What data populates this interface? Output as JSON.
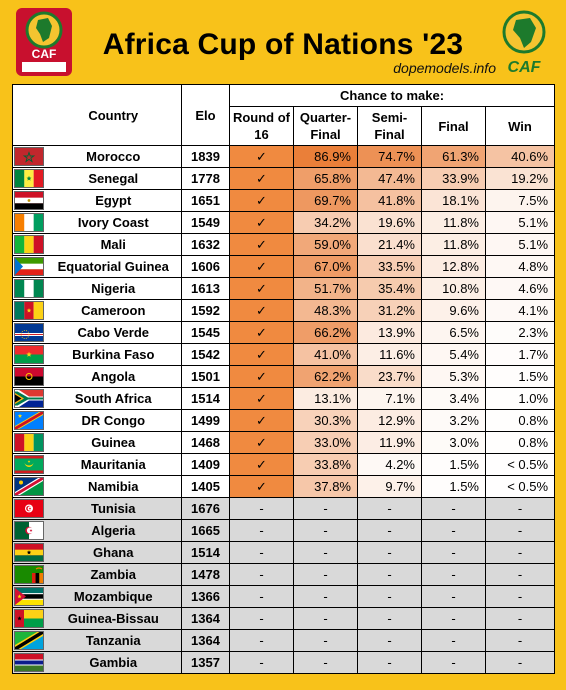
{
  "header": {
    "title": "Africa Cup of Nations '23",
    "credit": "dopemodels.info",
    "logo_left_text": "CAF",
    "logo_right_text": "CAF"
  },
  "table": {
    "group_header": "Chance to make:",
    "columns": {
      "country": "Country",
      "elo": "Elo",
      "r16_line1": "Round of",
      "r16_line2": "16",
      "qf_line1": "Quarter-",
      "qf_line2": "Final",
      "sf_line1": "Semi-",
      "sf_line2": "Final",
      "final": "Final",
      "win": "Win"
    },
    "check_symbol": "✓",
    "dash_symbol": "-",
    "colors": {
      "check_cell": "#f08a40",
      "heat_max": "#e97a32",
      "heat_min": "#ffffff",
      "eliminated": "#d9d9d9",
      "background": "#f8c21a"
    }
  },
  "chart_data": {
    "type": "table",
    "title": "Africa Cup of Nations '23",
    "columns": [
      "Country",
      "Elo",
      "Round of 16",
      "Quarter-Final",
      "Semi-Final",
      "Final",
      "Win"
    ],
    "rows": [
      {
        "country": "Morocco",
        "elo": 1839,
        "r16": "✓",
        "qf": "86.9%",
        "sf": "74.7%",
        "final": "61.3%",
        "win": "40.6%",
        "qf_v": 86.9,
        "sf_v": 74.7,
        "final_v": 61.3,
        "win_v": 40.6,
        "flag": "morocco"
      },
      {
        "country": "Senegal",
        "elo": 1778,
        "r16": "✓",
        "qf": "65.8%",
        "sf": "47.4%",
        "final": "33.9%",
        "win": "19.2%",
        "qf_v": 65.8,
        "sf_v": 47.4,
        "final_v": 33.9,
        "win_v": 19.2,
        "flag": "senegal"
      },
      {
        "country": "Egypt",
        "elo": 1651,
        "r16": "✓",
        "qf": "69.7%",
        "sf": "41.8%",
        "final": "18.1%",
        "win": "7.5%",
        "qf_v": 69.7,
        "sf_v": 41.8,
        "final_v": 18.1,
        "win_v": 7.5,
        "flag": "egypt"
      },
      {
        "country": "Ivory Coast",
        "elo": 1549,
        "r16": "✓",
        "qf": "34.2%",
        "sf": "19.6%",
        "final": "11.8%",
        "win": "5.1%",
        "qf_v": 34.2,
        "sf_v": 19.6,
        "final_v": 11.8,
        "win_v": 5.1,
        "flag": "ivorycoast"
      },
      {
        "country": "Mali",
        "elo": 1632,
        "r16": "✓",
        "qf": "59.0%",
        "sf": "21.4%",
        "final": "11.8%",
        "win": "5.1%",
        "qf_v": 59.0,
        "sf_v": 21.4,
        "final_v": 11.8,
        "win_v": 5.1,
        "flag": "mali"
      },
      {
        "country": "Equatorial Guinea",
        "elo": 1606,
        "r16": "✓",
        "qf": "67.0%",
        "sf": "33.5%",
        "final": "12.8%",
        "win": "4.8%",
        "qf_v": 67.0,
        "sf_v": 33.5,
        "final_v": 12.8,
        "win_v": 4.8,
        "flag": "eqguinea"
      },
      {
        "country": "Nigeria",
        "elo": 1613,
        "r16": "✓",
        "qf": "51.7%",
        "sf": "35.4%",
        "final": "10.8%",
        "win": "4.6%",
        "qf_v": 51.7,
        "sf_v": 35.4,
        "final_v": 10.8,
        "win_v": 4.6,
        "flag": "nigeria"
      },
      {
        "country": "Cameroon",
        "elo": 1592,
        "r16": "✓",
        "qf": "48.3%",
        "sf": "31.2%",
        "final": "9.6%",
        "win": "4.1%",
        "qf_v": 48.3,
        "sf_v": 31.2,
        "final_v": 9.6,
        "win_v": 4.1,
        "flag": "cameroon"
      },
      {
        "country": "Cabo Verde",
        "elo": 1545,
        "r16": "✓",
        "qf": "66.2%",
        "sf": "13.9%",
        "final": "6.5%",
        "win": "2.3%",
        "qf_v": 66.2,
        "sf_v": 13.9,
        "final_v": 6.5,
        "win_v": 2.3,
        "flag": "caboverde"
      },
      {
        "country": "Burkina Faso",
        "elo": 1542,
        "r16": "✓",
        "qf": "41.0%",
        "sf": "11.6%",
        "final": "5.4%",
        "win": "1.7%",
        "qf_v": 41.0,
        "sf_v": 11.6,
        "final_v": 5.4,
        "win_v": 1.7,
        "flag": "burkina"
      },
      {
        "country": "Angola",
        "elo": 1501,
        "r16": "✓",
        "qf": "62.2%",
        "sf": "23.7%",
        "final": "5.3%",
        "win": "1.5%",
        "qf_v": 62.2,
        "sf_v": 23.7,
        "final_v": 5.3,
        "win_v": 1.5,
        "flag": "angola"
      },
      {
        "country": "South Africa",
        "elo": 1514,
        "r16": "✓",
        "qf": "13.1%",
        "sf": "7.1%",
        "final": "3.4%",
        "win": "1.0%",
        "qf_v": 13.1,
        "sf_v": 7.1,
        "final_v": 3.4,
        "win_v": 1.0,
        "flag": "southafrica"
      },
      {
        "country": "DR Congo",
        "elo": 1499,
        "r16": "✓",
        "qf": "30.3%",
        "sf": "12.9%",
        "final": "3.2%",
        "win": "0.8%",
        "qf_v": 30.3,
        "sf_v": 12.9,
        "final_v": 3.2,
        "win_v": 0.8,
        "flag": "drcongo"
      },
      {
        "country": "Guinea",
        "elo": 1468,
        "r16": "✓",
        "qf": "33.0%",
        "sf": "11.9%",
        "final": "3.0%",
        "win": "0.8%",
        "qf_v": 33.0,
        "sf_v": 11.9,
        "final_v": 3.0,
        "win_v": 0.8,
        "flag": "guinea"
      },
      {
        "country": "Mauritania",
        "elo": 1409,
        "r16": "✓",
        "qf": "33.8%",
        "sf": "4.2%",
        "final": "1.5%",
        "win": "< 0.5%",
        "qf_v": 33.8,
        "sf_v": 4.2,
        "final_v": 1.5,
        "win_v": 0.4,
        "flag": "mauritania"
      },
      {
        "country": "Namibia",
        "elo": 1405,
        "r16": "✓",
        "qf": "37.8%",
        "sf": "9.7%",
        "final": "1.5%",
        "win": "< 0.5%",
        "qf_v": 37.8,
        "sf_v": 9.7,
        "final_v": 1.5,
        "win_v": 0.4,
        "flag": "namibia"
      },
      {
        "country": "Tunisia",
        "elo": 1676,
        "r16": "-",
        "qf": "-",
        "sf": "-",
        "final": "-",
        "win": "-",
        "flag": "tunisia",
        "eliminated": true
      },
      {
        "country": "Algeria",
        "elo": 1665,
        "r16": "-",
        "qf": "-",
        "sf": "-",
        "final": "-",
        "win": "-",
        "flag": "algeria",
        "eliminated": true
      },
      {
        "country": "Ghana",
        "elo": 1514,
        "r16": "-",
        "qf": "-",
        "sf": "-",
        "final": "-",
        "win": "-",
        "flag": "ghana",
        "eliminated": true
      },
      {
        "country": "Zambia",
        "elo": 1478,
        "r16": "-",
        "qf": "-",
        "sf": "-",
        "final": "-",
        "win": "-",
        "flag": "zambia",
        "eliminated": true
      },
      {
        "country": "Mozambique",
        "elo": 1366,
        "r16": "-",
        "qf": "-",
        "sf": "-",
        "final": "-",
        "win": "-",
        "flag": "mozambique",
        "eliminated": true
      },
      {
        "country": "Guinea-Bissau",
        "elo": 1364,
        "r16": "-",
        "qf": "-",
        "sf": "-",
        "final": "-",
        "win": "-",
        "flag": "guineabissau",
        "eliminated": true
      },
      {
        "country": "Tanzania",
        "elo": 1364,
        "r16": "-",
        "qf": "-",
        "sf": "-",
        "final": "-",
        "win": "-",
        "flag": "tanzania",
        "eliminated": true
      },
      {
        "country": "Gambia",
        "elo": 1357,
        "r16": "-",
        "qf": "-",
        "sf": "-",
        "final": "-",
        "win": "-",
        "flag": "gambia",
        "eliminated": true
      }
    ]
  }
}
